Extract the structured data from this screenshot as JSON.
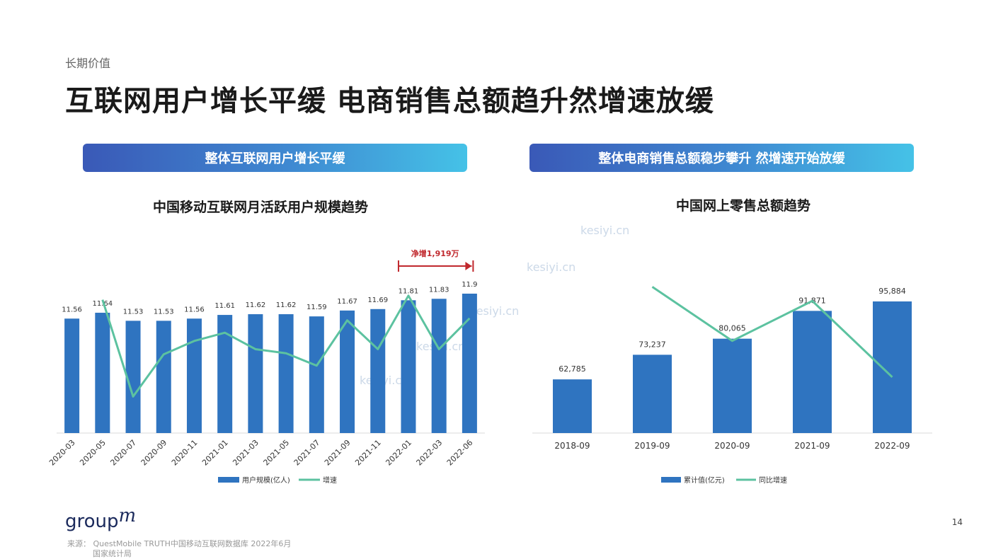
{
  "header": {
    "eyebrow": "长期价值",
    "title": "互联网用户增长平缓 电商销售总额趋升然增速放缓"
  },
  "left_panel": {
    "banner": "整体互联网用户增长平缓",
    "chart_title": "中国移动互联网月活跃用户规模趋势",
    "annotation": "净增1,919万"
  },
  "right_panel": {
    "banner": "整体电商销售总额稳步攀升 然增速开始放缓",
    "chart_title": "中国网上零售总额趋势"
  },
  "chart_data": [
    {
      "type": "bar",
      "title": "中国移动互联网月活跃用户规模趋势",
      "categories": [
        "2020-03",
        "2020-05",
        "2020-07",
        "2020-09",
        "2020-11",
        "2021-01",
        "2021-03",
        "2021-05",
        "2021-07",
        "2021-09",
        "2021-11",
        "2022-01",
        "2022-03",
        "2022-06"
      ],
      "series": [
        {
          "name": "用户规模(亿人)",
          "type": "bar",
          "values": [
            11.56,
            11.64,
            11.53,
            11.53,
            11.56,
            11.61,
            11.62,
            11.62,
            11.59,
            11.67,
            11.69,
            11.81,
            11.83,
            11.9
          ],
          "color": "#2f74c0"
        },
        {
          "name": "增速",
          "type": "line",
          "values": [
            null,
            2.6,
            -2.1,
            -0.05,
            0.6,
            1.0,
            0.2,
            0.0,
            -0.6,
            1.6,
            0.2,
            2.8,
            0.2,
            1.7
          ],
          "color": "#5cc2a0"
        }
      ],
      "legend": "bottom",
      "annotation": "净增1,919万"
    },
    {
      "type": "bar",
      "title": "中国网上零售总额趋势",
      "categories": [
        "2018-09",
        "2019-09",
        "2020-09",
        "2021-09",
        "2022-09"
      ],
      "series": [
        {
          "name": "累计值(亿元)",
          "type": "bar",
          "values": [
            62785,
            73237,
            80065,
            91871,
            95884
          ],
          "labels": [
            "62,785",
            "73,237",
            "80,065",
            "91,871",
            "95,884"
          ],
          "color": "#2f74c0"
        },
        {
          "name": "同比增速",
          "type": "line",
          "values": [
            null,
            16.6,
            9.3,
            14.7,
            4.4
          ],
          "color": "#5cc2a0"
        }
      ],
      "legend": "bottom"
    }
  ],
  "footer": {
    "logo_text": "group",
    "logo_mark": "m",
    "source_line1": "来源：  QuestMobile  TRUTH中国移动互联网数据库  2022年6月",
    "source_line2": "国家统计局",
    "page_number": "14"
  },
  "watermarks": [
    "kesiyi.cn",
    "kesiyi.cn",
    "kesiyi.cn",
    "kesiyi.cn",
    "kesiyi.cn"
  ]
}
